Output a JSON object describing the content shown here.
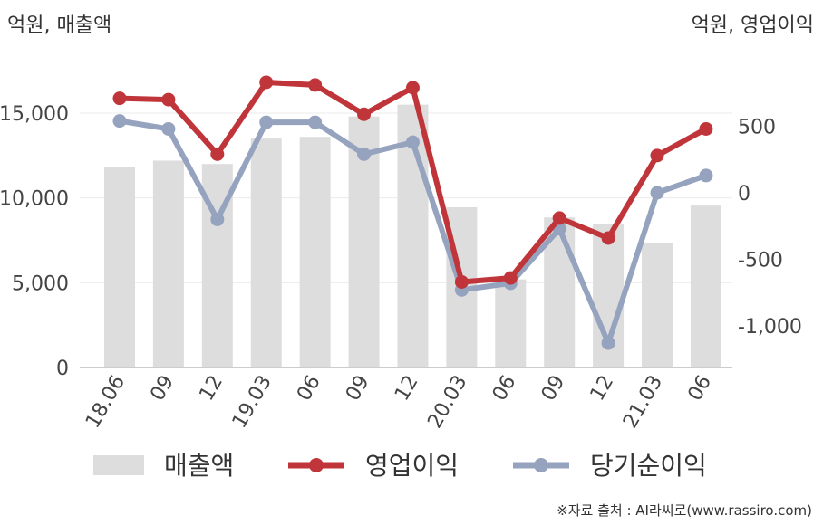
{
  "left_unit": "억원, 매출액",
  "right_unit": "억원, 영업이익",
  "source": "※자료 출처 : AI라씨로(www.rassiro.com)",
  "chart_data": {
    "type": "bar+line",
    "categories": [
      "18.06",
      "09",
      "12",
      "19.03",
      "06",
      "09",
      "12",
      "20.03",
      "06",
      "09",
      "12",
      "21.03",
      "06"
    ],
    "left_axis": {
      "ylim": [
        0,
        17500
      ],
      "ticks": [
        0,
        5000,
        10000,
        15000
      ],
      "tick_labels": [
        "0",
        "5,000",
        "10,000",
        "15,000"
      ]
    },
    "right_axis": {
      "ylim": [
        -1300,
        1100
      ],
      "ticks": [
        -1000,
        -500,
        0,
        500
      ],
      "tick_labels": [
        "-1,000",
        "-500",
        "0",
        "500"
      ]
    },
    "series": [
      {
        "name": "매출액",
        "kind": "bar",
        "axis": "left",
        "color": "#dddddd",
        "values": [
          11800,
          12200,
          12000,
          13500,
          13600,
          14800,
          15500,
          9450,
          5200,
          8850,
          8450,
          7350,
          9550
        ]
      },
      {
        "name": "영업이익",
        "kind": "line",
        "axis": "right",
        "color": "#c0353a",
        "values": [
          710,
          700,
          290,
          830,
          810,
          590,
          790,
          -670,
          -640,
          -190,
          -340,
          280,
          480
        ]
      },
      {
        "name": "당기순이익",
        "kind": "line",
        "axis": "right",
        "color": "#95a3bf",
        "values": [
          540,
          480,
          -200,
          530,
          530,
          290,
          380,
          -730,
          -680,
          -270,
          -1130,
          0,
          130
        ]
      }
    ],
    "grid": true,
    "legend": "bottom"
  }
}
